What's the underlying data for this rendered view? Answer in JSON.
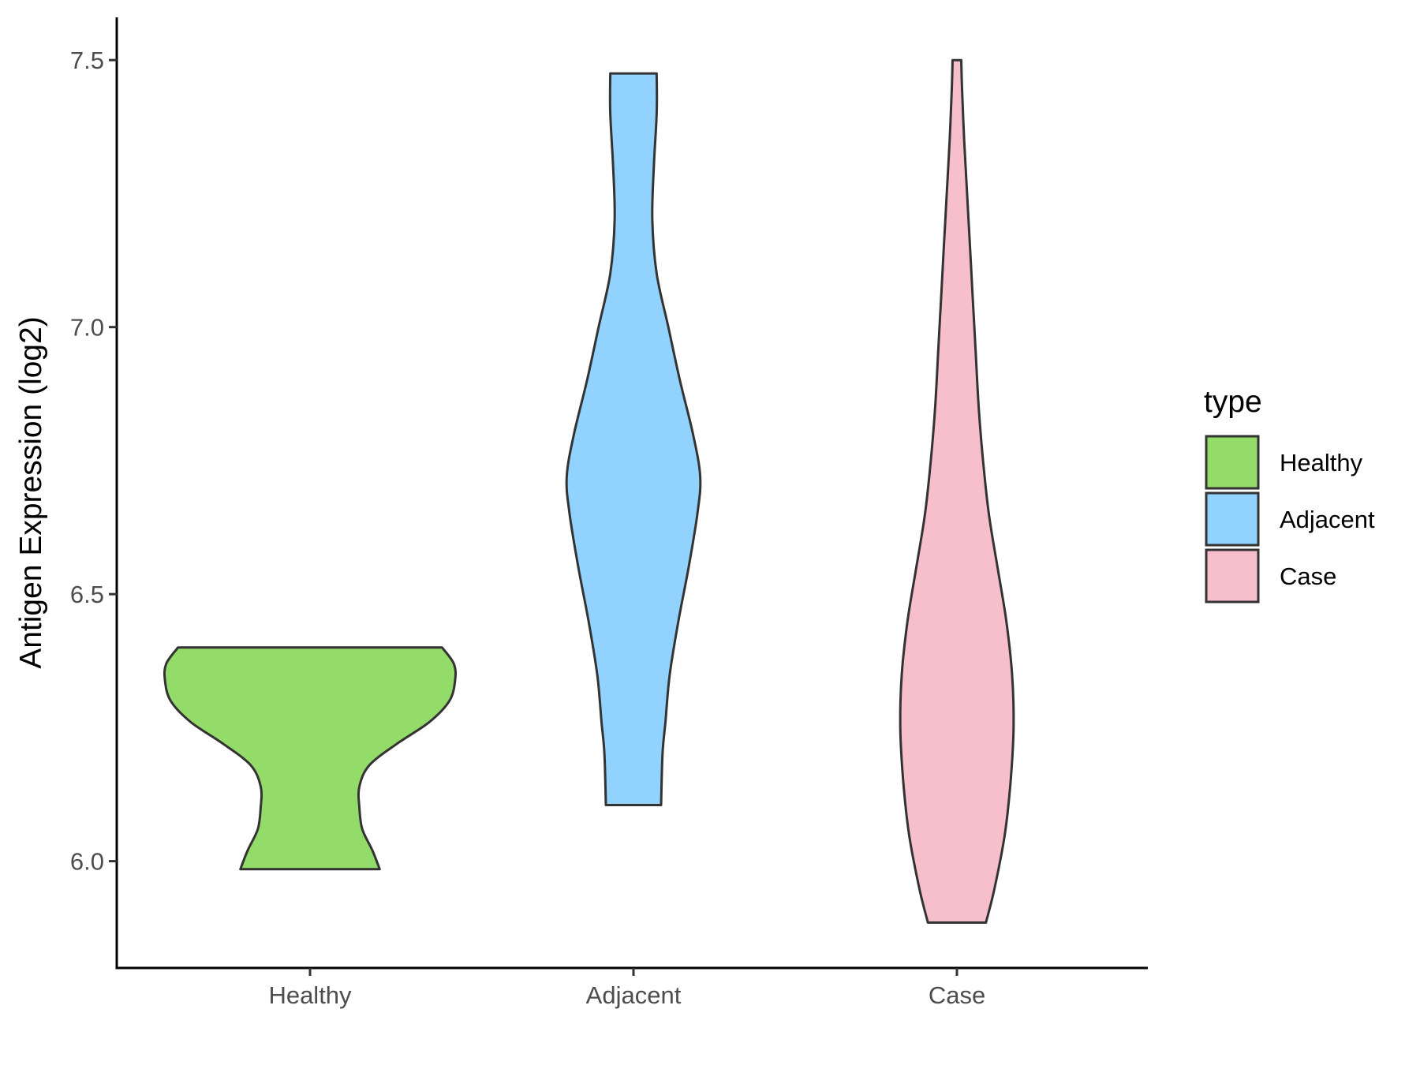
{
  "chart_data": {
    "type": "violin",
    "title": "",
    "xlabel": "",
    "ylabel": "Antigen Expression (log2)",
    "ylim": [
      5.8,
      7.58
    ],
    "yticks": [
      6.0,
      6.5,
      7.0,
      7.5
    ],
    "ytick_labels": [
      "6.0",
      "6.5",
      "7.0",
      "7.5"
    ],
    "categories": [
      "Healthy",
      "Adjacent",
      "Case"
    ],
    "legend": {
      "title": "type",
      "position": "right",
      "entries": [
        "Healthy",
        "Adjacent",
        "Case"
      ]
    },
    "grid": false,
    "series": [
      {
        "name": "Healthy",
        "color": "#93DC6A",
        "min": 5.985,
        "max": 6.4,
        "density_profile": [
          [
            5.985,
            0.48
          ],
          [
            6.02,
            0.43
          ],
          [
            6.06,
            0.36
          ],
          [
            6.1,
            0.34
          ],
          [
            6.14,
            0.34
          ],
          [
            6.18,
            0.41
          ],
          [
            6.22,
            0.6
          ],
          [
            6.26,
            0.82
          ],
          [
            6.3,
            0.96
          ],
          [
            6.34,
            1.0
          ],
          [
            6.37,
            0.99
          ],
          [
            6.4,
            0.91
          ]
        ]
      },
      {
        "name": "Adjacent",
        "color": "#92D2FF",
        "min": 6.105,
        "max": 7.475,
        "density_profile": [
          [
            6.105,
            0.19
          ],
          [
            6.2,
            0.2
          ],
          [
            6.26,
            0.22
          ],
          [
            6.35,
            0.25
          ],
          [
            6.45,
            0.31
          ],
          [
            6.55,
            0.38
          ],
          [
            6.65,
            0.44
          ],
          [
            6.72,
            0.46
          ],
          [
            6.8,
            0.41
          ],
          [
            6.9,
            0.32
          ],
          [
            7.0,
            0.24
          ],
          [
            7.1,
            0.16
          ],
          [
            7.2,
            0.13
          ],
          [
            7.3,
            0.14
          ],
          [
            7.4,
            0.16
          ],
          [
            7.475,
            0.16
          ]
        ]
      },
      {
        "name": "Case",
        "color": "#F7BFCB",
        "min": 5.885,
        "max": 7.5,
        "density_profile": [
          [
            5.885,
            0.2
          ],
          [
            5.95,
            0.26
          ],
          [
            6.05,
            0.33
          ],
          [
            6.15,
            0.37
          ],
          [
            6.25,
            0.39
          ],
          [
            6.35,
            0.38
          ],
          [
            6.45,
            0.34
          ],
          [
            6.55,
            0.28
          ],
          [
            6.65,
            0.22
          ],
          [
            6.75,
            0.18
          ],
          [
            6.85,
            0.15
          ],
          [
            6.95,
            0.13
          ],
          [
            7.05,
            0.11
          ],
          [
            7.15,
            0.09
          ],
          [
            7.25,
            0.07
          ],
          [
            7.35,
            0.05
          ],
          [
            7.45,
            0.035
          ],
          [
            7.5,
            0.03
          ]
        ]
      }
    ]
  }
}
